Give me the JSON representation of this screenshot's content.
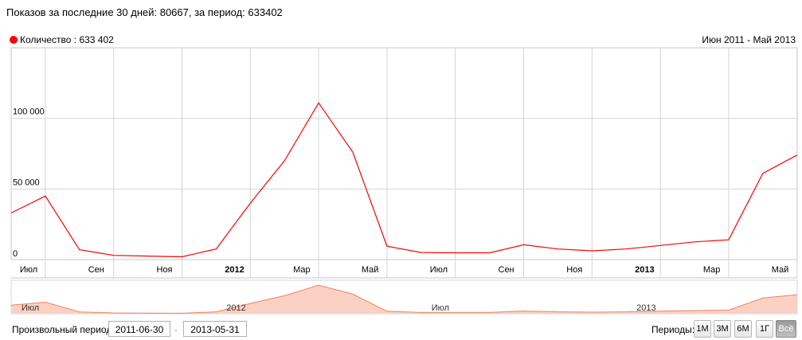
{
  "summary": "Показов за последние 30 дней: 80667, за период: 633402",
  "legend": {
    "label": "Количество : 633 402",
    "color": "#ff0000"
  },
  "range_label": "Июн 2011 - Май 2013",
  "controls": {
    "custom_period_label": "Произвольный период:",
    "date_from": "2011-06-30",
    "date_separator": "-",
    "date_to": "2013-05-31",
    "periods_label": "Периоды:",
    "periods": [
      "1М",
      "3М",
      "6М",
      "1Г",
      "Всё"
    ],
    "active_period": "Всё"
  },
  "chart_data": {
    "type": "line",
    "series": [
      {
        "name": "Количество",
        "color": "#ff0000",
        "x": [
          "2011-06-01",
          "2011-07-01",
          "2011-08-01",
          "2011-09-01",
          "2011-10-01",
          "2011-11-01",
          "2011-12-01",
          "2012-01-01",
          "2012-02-01",
          "2012-03-01",
          "2012-04-01",
          "2012-05-01",
          "2012-06-01",
          "2012-07-01",
          "2012-08-01",
          "2012-09-01",
          "2012-10-01",
          "2012-11-01",
          "2012-12-01",
          "2013-01-01",
          "2013-02-01",
          "2013-03-01",
          "2013-04-01",
          "2013-05-01"
        ],
        "values": [
          33000,
          45000,
          7000,
          3000,
          2500,
          2000,
          7500,
          40000,
          70000,
          111000,
          76000,
          9500,
          5000,
          4800,
          4800,
          10500,
          7500,
          6200,
          7500,
          10000,
          12500,
          14000,
          61000,
          74000
        ]
      }
    ],
    "y_ticks": [
      {
        "value": 0,
        "label": "0"
      },
      {
        "value": 50000,
        "label": "50 000"
      },
      {
        "value": 100000,
        "label": "100 000"
      }
    ],
    "x_ticks": [
      {
        "label": "Июл",
        "bold": false
      },
      {
        "label": "Сен",
        "bold": false
      },
      {
        "label": "Ноя",
        "bold": false
      },
      {
        "label": "2012",
        "bold": true
      },
      {
        "label": "Мар",
        "bold": false
      },
      {
        "label": "Май",
        "bold": false
      },
      {
        "label": "Июл",
        "bold": false
      },
      {
        "label": "Сен",
        "bold": false
      },
      {
        "label": "Ноя",
        "bold": false
      },
      {
        "label": "2013",
        "bold": true
      },
      {
        "label": "Мар",
        "bold": false
      },
      {
        "label": "Май",
        "bold": false
      }
    ],
    "navigator_ticks": [
      "Июл",
      "2012",
      "Июл",
      "2013"
    ],
    "ylim": [
      0,
      150000
    ],
    "grid": true,
    "fill_color": "#fbd1c4",
    "navigator_line_color": "#f08060"
  }
}
